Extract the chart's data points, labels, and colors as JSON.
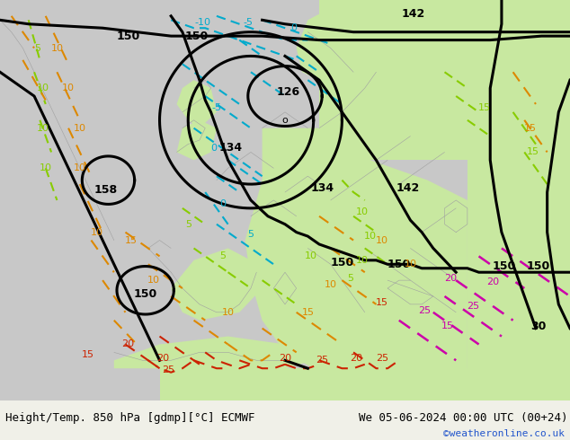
{
  "title_left": "Height/Temp. 850 hPa [gdmp][°C] ECMWF",
  "title_right": "We 05-06-2024 00:00 UTC (00+24)",
  "credit": "©weatheronline.co.uk",
  "fig_width": 6.34,
  "fig_height": 4.9,
  "dpi": 100,
  "bg_color": "#f0f0e8",
  "land_green": "#c8e8a0",
  "ocean_gray": "#c8c8c8",
  "land_light": "#e8e8e0",
  "bottom_bar_color": "#f0f0e8",
  "title_fontsize": 9,
  "credit_color": "#2255cc",
  "credit_fontsize": 8,
  "hc_color": "#000000",
  "hc_lw": 2.2,
  "cold_color": "#00aacc",
  "green_color": "#88cc00",
  "orange_color": "#dd8800",
  "red_color": "#cc2200",
  "pink_color": "#cc00aa"
}
